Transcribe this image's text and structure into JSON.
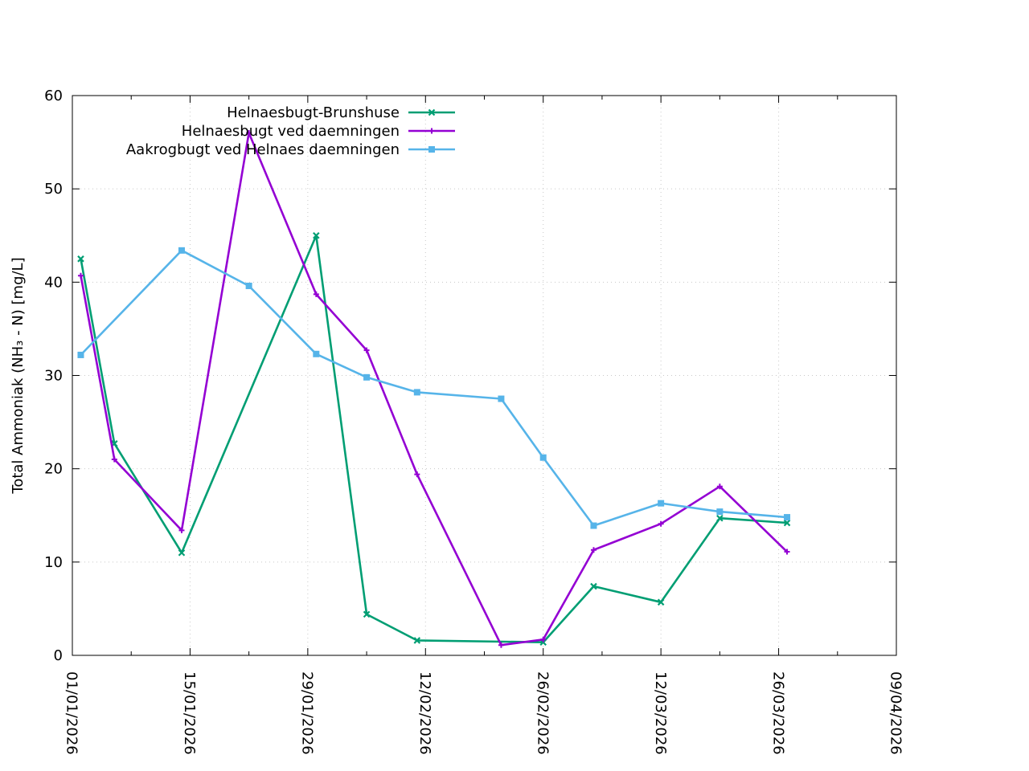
{
  "chart_data": {
    "type": "line",
    "title": "",
    "xlabel": "",
    "ylabel": "Total Ammoniak (NH₃ - N) [mg/L]",
    "x_axis": {
      "kind": "date",
      "range": [
        "2026-01-01",
        "2026-04-09"
      ],
      "ticks": [
        "01/01/2026",
        "15/01/2026",
        "29/01/2026",
        "12/02/2026",
        "26/02/2026",
        "12/03/2026",
        "26/03/2026",
        "09/04/2026"
      ]
    },
    "ylim": [
      0,
      60
    ],
    "y_ticks": [
      0,
      10,
      20,
      30,
      40,
      50,
      60
    ],
    "grid": true,
    "legend_position": "top-left",
    "series": [
      {
        "name": "Helnaesbugt-Brunshuse",
        "color": "#009e73",
        "marker": "x",
        "points": [
          {
            "x": "2026-01-02",
            "y": 42.5
          },
          {
            "x": "2026-01-06",
            "y": 22.7
          },
          {
            "x": "2026-01-14",
            "y": 11.0
          },
          {
            "x": "2026-01-30",
            "y": 45.0
          },
          {
            "x": "2026-02-05",
            "y": 4.4
          },
          {
            "x": "2026-02-11",
            "y": 1.6
          },
          {
            "x": "2026-02-26",
            "y": 1.4
          },
          {
            "x": "2026-03-04",
            "y": 7.4
          },
          {
            "x": "2026-03-12",
            "y": 5.7
          },
          {
            "x": "2026-03-19",
            "y": 14.7
          },
          {
            "x": "2026-03-27",
            "y": 14.2
          }
        ]
      },
      {
        "name": "Helnaesbugt ved daemningen",
        "color": "#9400d3",
        "marker": "plus",
        "points": [
          {
            "x": "2026-01-02",
            "y": 40.7
          },
          {
            "x": "2026-01-06",
            "y": 21.0
          },
          {
            "x": "2026-01-14",
            "y": 13.4
          },
          {
            "x": "2026-01-22",
            "y": 56.0
          },
          {
            "x": "2026-01-30",
            "y": 38.7
          },
          {
            "x": "2026-02-05",
            "y": 32.7
          },
          {
            "x": "2026-02-11",
            "y": 19.4
          },
          {
            "x": "2026-02-21",
            "y": 1.1
          },
          {
            "x": "2026-02-26",
            "y": 1.7
          },
          {
            "x": "2026-03-04",
            "y": 11.3
          },
          {
            "x": "2026-03-12",
            "y": 14.1
          },
          {
            "x": "2026-03-19",
            "y": 18.1
          },
          {
            "x": "2026-03-27",
            "y": 11.1
          }
        ]
      },
      {
        "name": "Aakrogbugt ved Helnaes daemningen",
        "color": "#56b4e9",
        "marker": "square",
        "points": [
          {
            "x": "2026-01-02",
            "y": 32.2
          },
          {
            "x": "2026-01-14",
            "y": 43.4
          },
          {
            "x": "2026-01-22",
            "y": 39.6
          },
          {
            "x": "2026-01-30",
            "y": 32.3
          },
          {
            "x": "2026-02-05",
            "y": 29.8
          },
          {
            "x": "2026-02-11",
            "y": 28.2
          },
          {
            "x": "2026-02-21",
            "y": 27.5
          },
          {
            "x": "2026-02-26",
            "y": 21.2
          },
          {
            "x": "2026-03-04",
            "y": 13.9
          },
          {
            "x": "2026-03-12",
            "y": 16.3
          },
          {
            "x": "2026-03-19",
            "y": 15.4
          },
          {
            "x": "2026-03-27",
            "y": 14.8
          }
        ]
      }
    ]
  }
}
